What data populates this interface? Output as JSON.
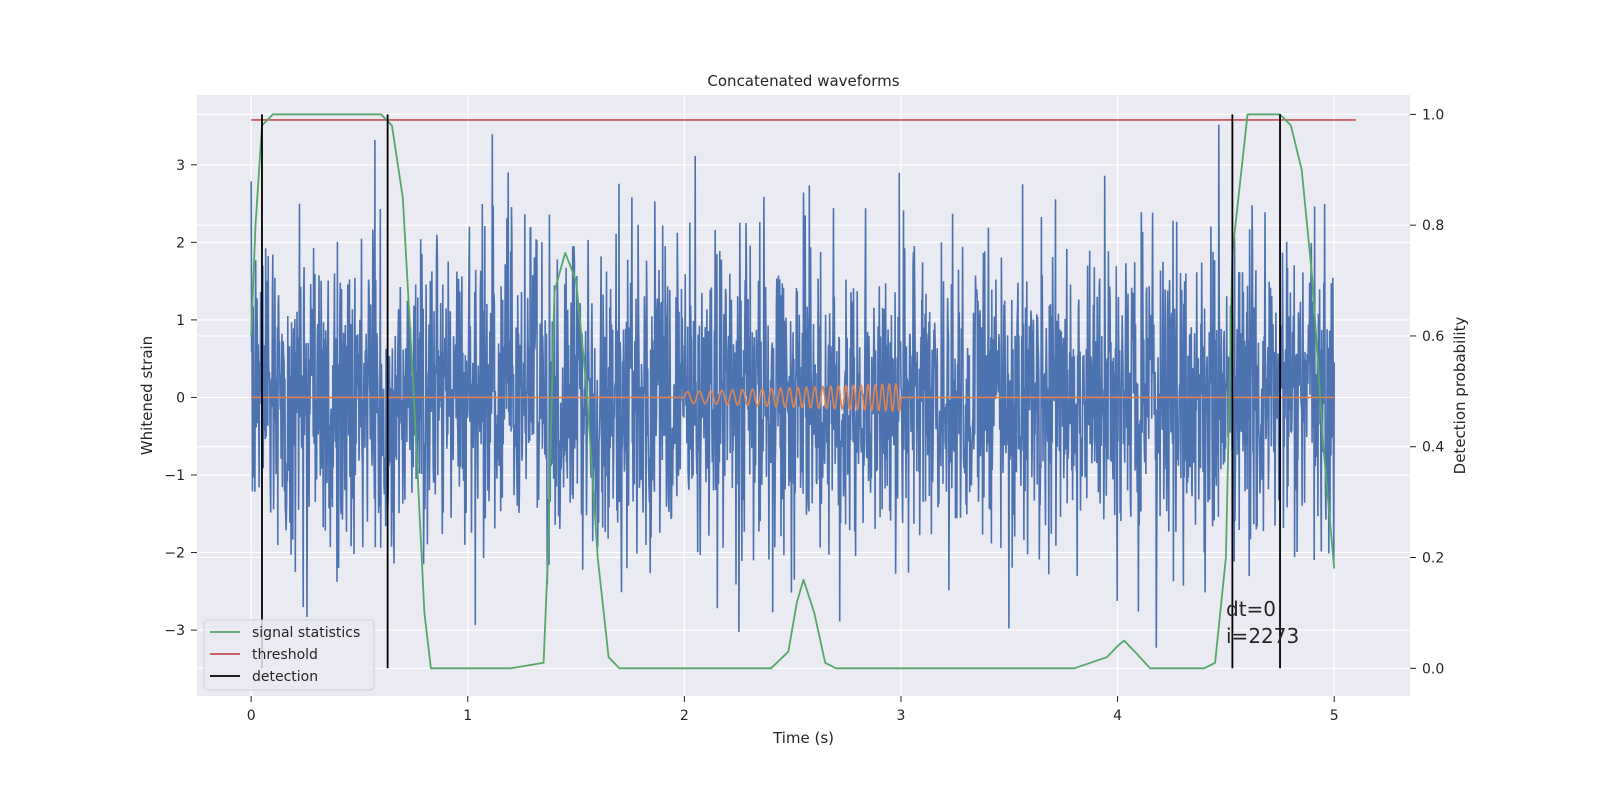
{
  "chart_data": {
    "type": "line",
    "title": "Concatenated waveforms",
    "xlabel": "Time (s)",
    "ylabel": "Whitened strain",
    "ylabel_right": "Detection probability",
    "xlim": [
      -0.25,
      5.35
    ],
    "ylim": [
      -3.85,
      3.9
    ],
    "ylim_right": [
      -0.05,
      1.035
    ],
    "xticks": [
      0,
      1,
      2,
      3,
      4,
      5
    ],
    "yticks": [
      -3,
      -2,
      -1,
      0,
      1,
      2,
      3
    ],
    "yticks_right": [
      0.0,
      0.2,
      0.4,
      0.6,
      0.8,
      1.0
    ],
    "ytick_labels": [
      "−3",
      "−2",
      "−1",
      "0",
      "1",
      "2",
      "3"
    ],
    "ytick_right_labels": [
      "0.0",
      "0.2",
      "0.4",
      "0.6",
      "0.8",
      "1.0"
    ],
    "grid": true,
    "legend_position": "lower-left",
    "legend": [
      {
        "label": "signal statistics",
        "color": "#55a868"
      },
      {
        "label": "threshold",
        "color": "#c44e52"
      },
      {
        "label": "detection",
        "color": "#000000"
      }
    ],
    "annotations": [
      "dt=0",
      "i=2273"
    ],
    "colors": {
      "strain": "#4c72b0",
      "template": "#dd8452",
      "signal_statistics": "#55a868",
      "threshold": "#c44e52",
      "detection": "#000000",
      "background": "#eaeaf2",
      "grid": "#ffffff"
    },
    "strain": {
      "x_start": 0,
      "x_end": 5,
      "typical_amplitude": 1.0,
      "max_amplitude": 3.6
    },
    "template": {
      "x_start": 2.0,
      "x_end": 3.0,
      "cycles": 25,
      "max_amplitude": 0.18
    },
    "threshold": {
      "value": 0.99,
      "x": [
        0,
        5.1
      ]
    },
    "detections": [
      0.05,
      0.63,
      4.53,
      4.75
    ],
    "signal_statistics": {
      "x": [
        0.0,
        0.02,
        0.05,
        0.1,
        0.2,
        0.4,
        0.6,
        0.65,
        0.7,
        0.75,
        0.8,
        0.83,
        0.9,
        1.2,
        1.35,
        1.37,
        1.4,
        1.45,
        1.5,
        1.55,
        1.6,
        1.65,
        1.7,
        2.4,
        2.48,
        2.52,
        2.55,
        2.6,
        2.65,
        2.7,
        3.8,
        3.95,
        4.0,
        4.03,
        4.08,
        4.15,
        4.4,
        4.45,
        4.5,
        4.53,
        4.6,
        4.75,
        4.8,
        4.85,
        4.9,
        4.95,
        5.0
      ],
      "y": [
        0.6,
        0.8,
        0.98,
        1.0,
        1.0,
        1.0,
        1.0,
        0.98,
        0.85,
        0.5,
        0.1,
        0.0,
        0.0,
        0.0,
        0.01,
        0.2,
        0.68,
        0.75,
        0.7,
        0.5,
        0.2,
        0.02,
        0.0,
        0.0,
        0.03,
        0.12,
        0.16,
        0.1,
        0.01,
        0.0,
        0.0,
        0.02,
        0.04,
        0.05,
        0.03,
        0.0,
        0.0,
        0.01,
        0.2,
        0.75,
        1.0,
        1.0,
        0.98,
        0.9,
        0.7,
        0.4,
        0.18
      ]
    }
  }
}
